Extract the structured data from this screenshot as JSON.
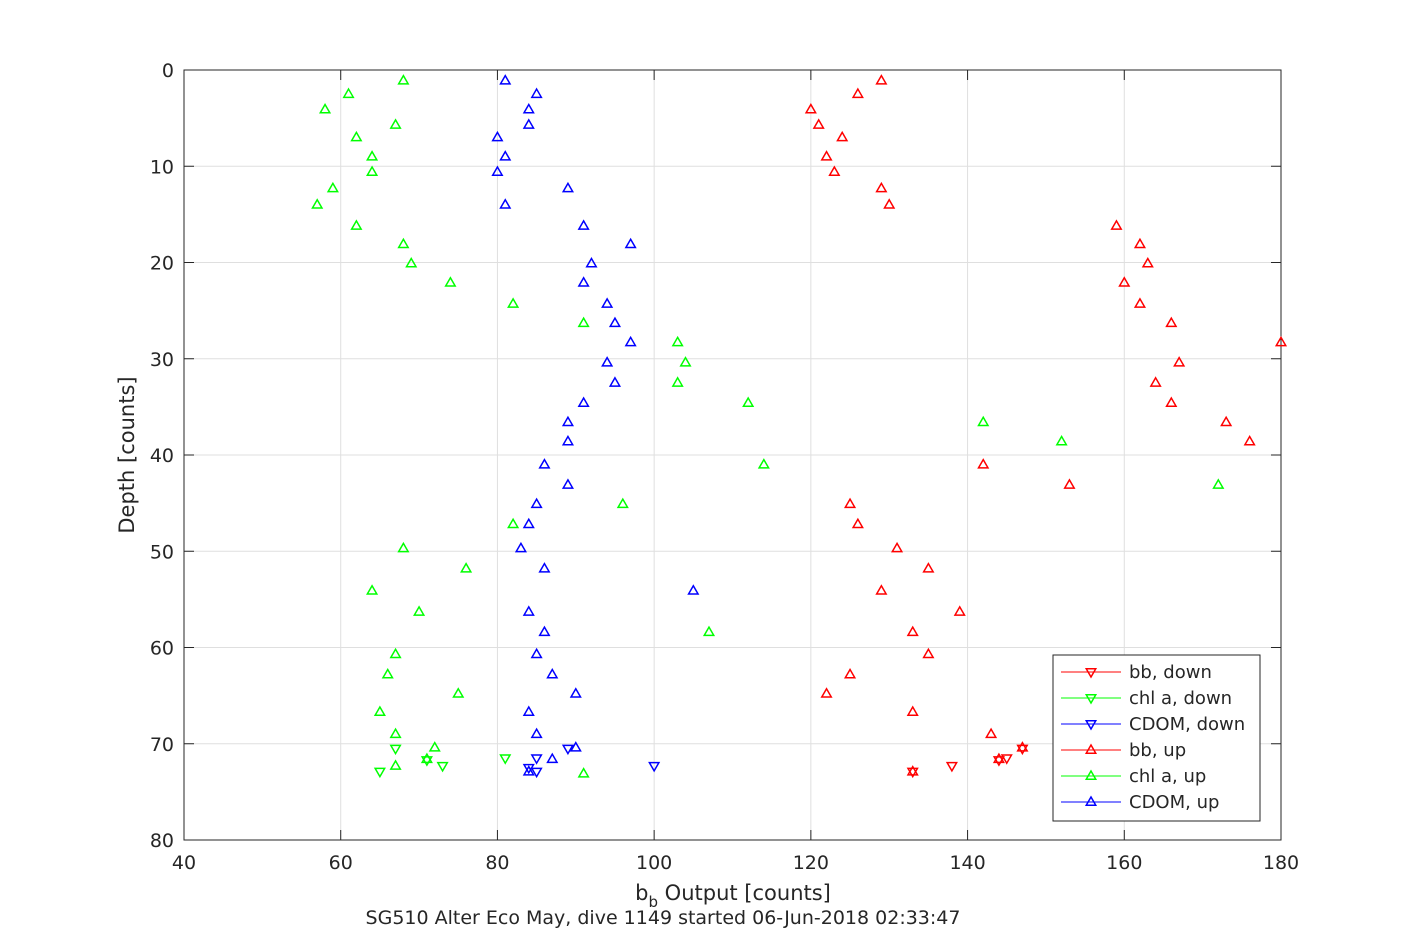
{
  "chart_data": {
    "type": "scatter",
    "xlabel_main": "b",
    "xlabel_sub": "b",
    "xlabel_rest": " Output [counts]",
    "ylabel": "Depth [counts]",
    "title": "SG510 Alter Eco May, dive 1149 started 06-Jun-2018 02:33:47",
    "xlim": [
      40,
      180
    ],
    "ylim": [
      0,
      80
    ],
    "y_reversed": true,
    "grid": true,
    "legend_position": "lower-right",
    "xticks": [
      40,
      60,
      80,
      100,
      120,
      140,
      160,
      180
    ],
    "yticks": [
      0,
      10,
      20,
      30,
      40,
      50,
      60,
      70,
      80
    ],
    "series": [
      {
        "name": "bb, down",
        "color": "#ff0000",
        "marker": "triangle-down",
        "points": [
          [
            133,
            72.9
          ],
          [
            138,
            72.3
          ],
          [
            144,
            71.7
          ],
          [
            145,
            71.5
          ],
          [
            147,
            70.5
          ]
        ]
      },
      {
        "name": "chl a, down",
        "color": "#00ff00",
        "marker": "triangle-down",
        "points": [
          [
            65,
            72.9
          ],
          [
            73,
            72.3
          ],
          [
            71,
            71.7
          ],
          [
            81,
            71.5
          ],
          [
            67,
            70.5
          ]
        ]
      },
      {
        "name": "CDOM, down",
        "color": "#0000ff",
        "marker": "triangle-down",
        "points": [
          [
            85,
            72.9
          ],
          [
            100,
            72.3
          ],
          [
            84,
            72.5
          ],
          [
            85,
            71.5
          ],
          [
            89,
            70.5
          ]
        ]
      },
      {
        "name": "bb, up",
        "color": "#ff0000",
        "marker": "triangle-up",
        "points": [
          [
            129,
            1.1
          ],
          [
            126,
            2.5
          ],
          [
            120,
            4.1
          ],
          [
            121,
            5.7
          ],
          [
            124,
            7.0
          ],
          [
            122,
            9.0
          ],
          [
            123,
            10.6
          ],
          [
            129,
            12.3
          ],
          [
            130,
            14.0
          ],
          [
            159,
            16.2
          ],
          [
            162,
            18.1
          ],
          [
            163,
            20.1
          ],
          [
            160,
            22.1
          ],
          [
            162,
            24.3
          ],
          [
            166,
            26.3
          ],
          [
            180,
            28.3
          ],
          [
            167,
            30.4
          ],
          [
            164,
            32.5
          ],
          [
            166,
            34.6
          ],
          [
            173,
            36.6
          ],
          [
            176,
            38.6
          ],
          [
            142,
            41.0
          ],
          [
            153,
            43.1
          ],
          [
            125,
            45.1
          ],
          [
            126,
            47.2
          ],
          [
            131,
            49.7
          ],
          [
            135,
            51.8
          ],
          [
            129,
            54.1
          ],
          [
            139,
            56.3
          ],
          [
            133,
            58.4
          ],
          [
            135,
            60.7
          ],
          [
            125,
            62.8
          ],
          [
            122,
            64.8
          ],
          [
            133,
            66.7
          ],
          [
            143,
            69.0
          ],
          [
            147,
            70.4
          ],
          [
            144,
            71.6
          ],
          [
            133,
            72.9
          ]
        ]
      },
      {
        "name": "chl a, up",
        "color": "#00ff00",
        "marker": "triangle-up",
        "points": [
          [
            68,
            1.1
          ],
          [
            61,
            2.5
          ],
          [
            58,
            4.1
          ],
          [
            67,
            5.7
          ],
          [
            62,
            7.0
          ],
          [
            64,
            9.0
          ],
          [
            64,
            10.6
          ],
          [
            59,
            12.3
          ],
          [
            57,
            14.0
          ],
          [
            62,
            16.2
          ],
          [
            68,
            18.1
          ],
          [
            69,
            20.1
          ],
          [
            74,
            22.1
          ],
          [
            82,
            24.3
          ],
          [
            91,
            26.3
          ],
          [
            103,
            28.3
          ],
          [
            104,
            30.4
          ],
          [
            103,
            32.5
          ],
          [
            112,
            34.6
          ],
          [
            142,
            36.6
          ],
          [
            152,
            38.6
          ],
          [
            114,
            41.0
          ],
          [
            172,
            43.1
          ],
          [
            96,
            45.1
          ],
          [
            82,
            47.2
          ],
          [
            68,
            49.7
          ],
          [
            76,
            51.8
          ],
          [
            64,
            54.1
          ],
          [
            70,
            56.3
          ],
          [
            107,
            58.4
          ],
          [
            67,
            60.7
          ],
          [
            66,
            62.8
          ],
          [
            75,
            64.8
          ],
          [
            65,
            66.7
          ],
          [
            67,
            69.0
          ],
          [
            72,
            70.4
          ],
          [
            71,
            71.6
          ],
          [
            67,
            72.3
          ],
          [
            91,
            73.1
          ]
        ]
      },
      {
        "name": "CDOM, up",
        "color": "#0000ff",
        "marker": "triangle-up",
        "points": [
          [
            81,
            1.1
          ],
          [
            85,
            2.5
          ],
          [
            84,
            4.1
          ],
          [
            84,
            5.7
          ],
          [
            80,
            7.0
          ],
          [
            81,
            9.0
          ],
          [
            80,
            10.6
          ],
          [
            89,
            12.3
          ],
          [
            81,
            14.0
          ],
          [
            91,
            16.2
          ],
          [
            97,
            18.1
          ],
          [
            92,
            20.1
          ],
          [
            91,
            22.1
          ],
          [
            94,
            24.3
          ],
          [
            95,
            26.3
          ],
          [
            97,
            28.3
          ],
          [
            94,
            30.4
          ],
          [
            95,
            32.5
          ],
          [
            91,
            34.6
          ],
          [
            89,
            36.6
          ],
          [
            89,
            38.6
          ],
          [
            86,
            41.0
          ],
          [
            89,
            43.1
          ],
          [
            85,
            45.1
          ],
          [
            84,
            47.2
          ],
          [
            83,
            49.7
          ],
          [
            86,
            51.8
          ],
          [
            105,
            54.1
          ],
          [
            84,
            56.3
          ],
          [
            86,
            58.4
          ],
          [
            85,
            60.7
          ],
          [
            87,
            62.8
          ],
          [
            90,
            64.8
          ],
          [
            84,
            66.7
          ],
          [
            85,
            69.0
          ],
          [
            90,
            70.4
          ],
          [
            87,
            71.6
          ],
          [
            84,
            72.9
          ]
        ]
      }
    ]
  }
}
